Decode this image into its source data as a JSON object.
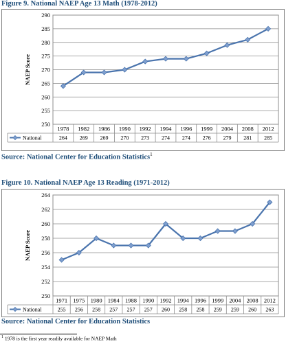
{
  "figure9": {
    "title": "Figure 9. National NAEP Age 13 Math (1978-2012)",
    "source": "Source: National Center for Education Statistics",
    "source_sup": "1"
  },
  "figure10": {
    "title": "Figure 10. National NAEP Age 13 Reading (1971-2012)",
    "source": "Source: National Center for Education Statistics"
  },
  "footnote": {
    "marker": "1",
    "text": "1978 is the first year readily available for NAEP Math"
  },
  "colors": {
    "line": "#4a74ad",
    "marker": "#7f9fcf",
    "grid": "#8c8c8c",
    "title": "#1f4e79"
  },
  "chart_data": [
    {
      "type": "line",
      "title": "Figure 9. National NAEP Age 13 Math (1978-2012)",
      "ylabel": "NAEP Score",
      "ylim": [
        250,
        290
      ],
      "yticks": [
        250,
        255,
        260,
        265,
        270,
        275,
        280,
        285,
        290
      ],
      "grid": true,
      "legend": "table-below",
      "categories": [
        "1978",
        "1982",
        "1986",
        "1990",
        "1992",
        "1994",
        "1996",
        "1999",
        "2004",
        "2008",
        "2012"
      ],
      "series": [
        {
          "name": "National",
          "values": [
            264,
            269,
            269,
            270,
            273,
            274,
            274,
            276,
            279,
            281,
            285
          ]
        }
      ]
    },
    {
      "type": "line",
      "title": "Figure 10. National NAEP Age 13 Reading (1971-2012)",
      "ylabel": "NAEP Score",
      "ylim": [
        250,
        264
      ],
      "yticks": [
        250,
        252,
        254,
        256,
        258,
        260,
        262,
        264
      ],
      "grid": true,
      "legend": "table-below",
      "categories": [
        "1971",
        "1975",
        "1980",
        "1984",
        "1988",
        "1990",
        "1992",
        "1994",
        "1996",
        "1999",
        "2004",
        "2008",
        "2012"
      ],
      "series": [
        {
          "name": "National",
          "values": [
            255,
            256,
            258,
            257,
            257,
            257,
            260,
            258,
            258,
            259,
            259,
            260,
            263
          ]
        }
      ]
    }
  ]
}
